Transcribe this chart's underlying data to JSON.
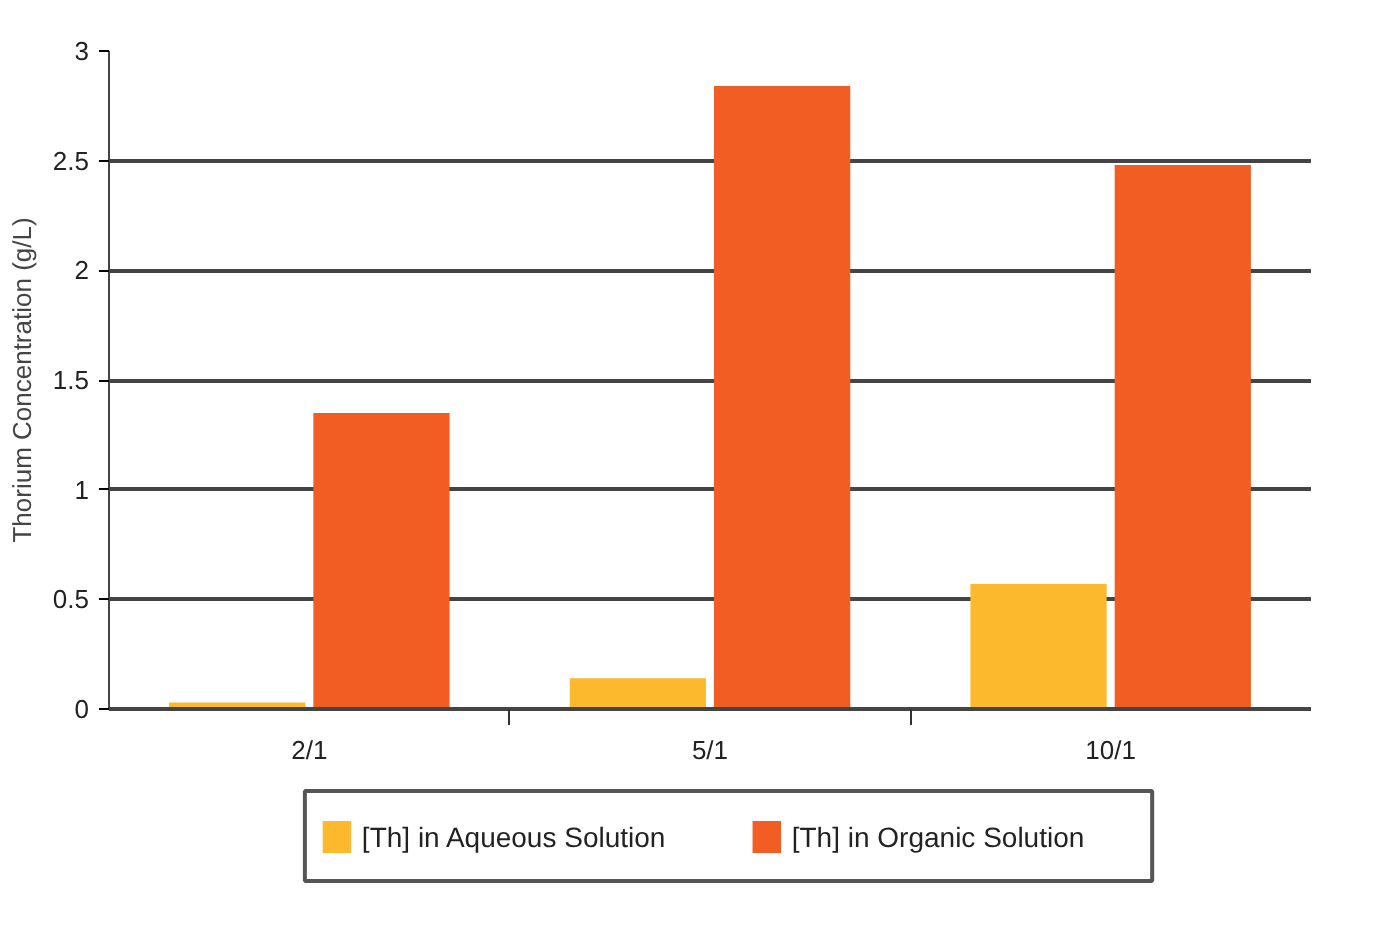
{
  "chart_data": {
    "type": "bar",
    "ylabel": "Thorium Concentration (g/L)",
    "categories": [
      "2/1",
      "5/1",
      "10/1"
    ],
    "series": [
      {
        "name": "[Th] in Aqueous Solution",
        "color": "#fdb92e",
        "values": [
          0.03,
          0.14,
          0.57
        ]
      },
      {
        "name": "[Th] in Organic Solution",
        "color": "#f15d22",
        "values": [
          1.35,
          2.84,
          2.48
        ]
      }
    ],
    "ylim": [
      0,
      3
    ],
    "yticks": [
      0,
      0.5,
      1,
      1.5,
      2,
      2.5,
      3
    ],
    "grid": "y",
    "legend": "bottom"
  }
}
